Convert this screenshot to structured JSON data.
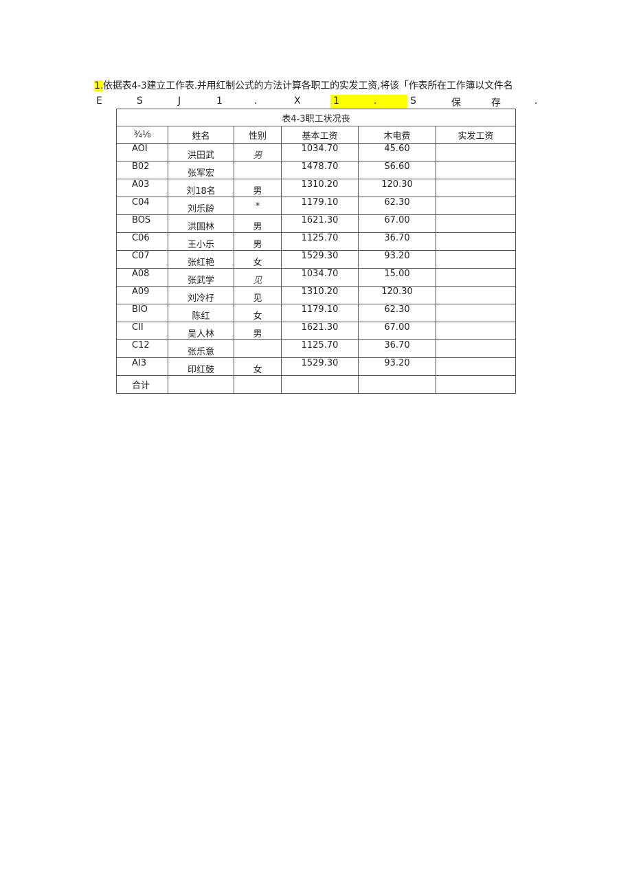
{
  "instruction": {
    "number": "1.",
    "text": "依据表4-3建立工作表.并用红制公式的方法计算各职工的实发工资,将该「作表所在工作簿以文件名",
    "line2": [
      "E",
      "S",
      "J",
      "1",
      ".",
      "X",
      "1",
      ".",
      "S",
      "保",
      "存",
      "."
    ]
  },
  "table": {
    "title": "表4-3职工状况丧",
    "headers": [
      "¾⅛",
      "姓名",
      "性别",
      "基本工资",
      "木电费",
      "实发工资"
    ],
    "rows": [
      [
        "AOI",
        "洪田武",
        "男",
        "1034.70",
        "45.60",
        ""
      ],
      [
        "B02",
        "张军宏",
        "",
        "1478.70",
        "S6.60",
        ""
      ],
      [
        "A03",
        "刘18名",
        "男",
        "1310.20",
        "120.30",
        ""
      ],
      [
        "C04",
        "刘乐龄",
        "*",
        "1179.10",
        "62.30",
        ""
      ],
      [
        "BOS",
        "洪国林",
        "男",
        "1621.30",
        "67.00",
        ""
      ],
      [
        "C06",
        "王小乐",
        "男",
        "1125.70",
        "36.70",
        ""
      ],
      [
        "C07",
        "张红艳",
        "女",
        "1529.30",
        "93.20",
        ""
      ],
      [
        "A08",
        "张武学",
        "见",
        "1034.70",
        "15.00",
        ""
      ],
      [
        "A09",
        "刘冷杍",
        "见",
        "1310.20",
        "120.30",
        ""
      ],
      [
        "BIO",
        "陈红",
        "女",
        "1179.10",
        "62.30",
        ""
      ],
      [
        "CII",
        "吴人林",
        "男",
        "1621.30",
        "67.00",
        ""
      ],
      [
        "C12",
        "张乐意",
        "",
        "1125.70",
        "36.70",
        ""
      ],
      [
        "AI3",
        "印红鼓",
        "女",
        "1529.30",
        "93.20",
        ""
      ]
    ],
    "total_label": "合计"
  },
  "colors": {
    "highlight": "#ffff00"
  }
}
